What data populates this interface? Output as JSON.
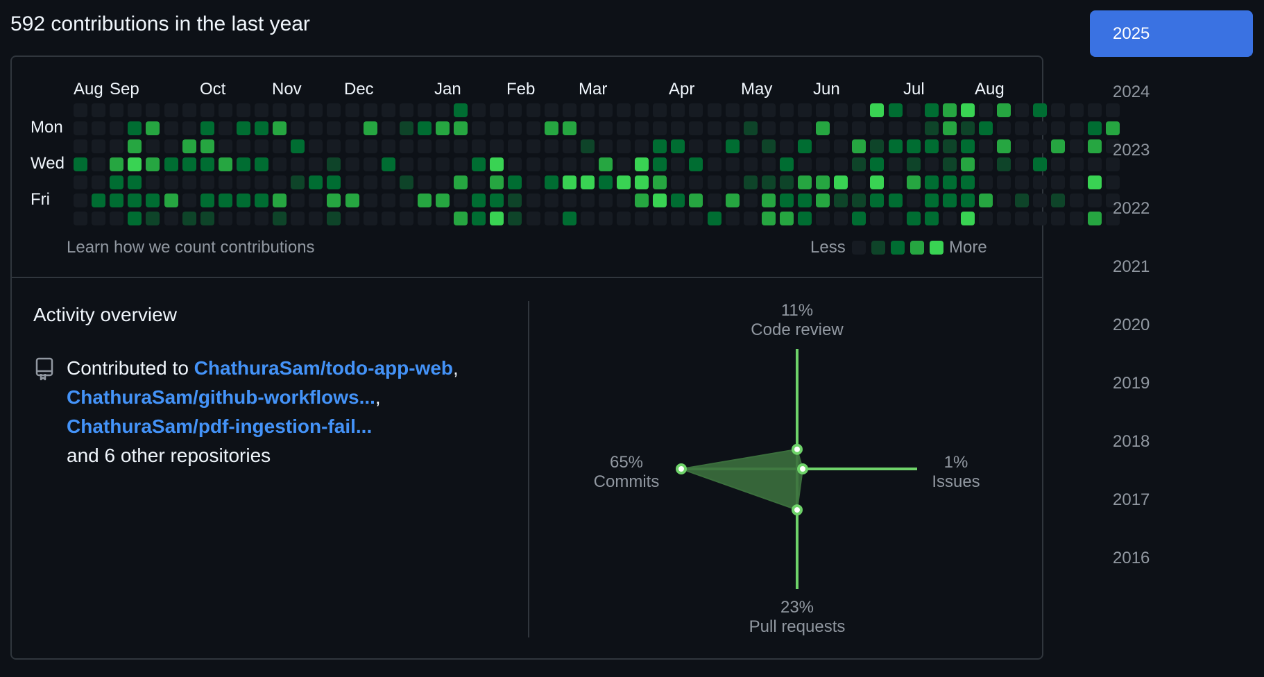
{
  "heading": "592 contributions in the last year",
  "calendar": {
    "months": [
      "Aug",
      "Sep",
      "Oct",
      "Nov",
      "Dec",
      "Jan",
      "Feb",
      "Mar",
      "Apr",
      "May",
      "Jun",
      "Jul",
      "Aug"
    ],
    "day_labels": [
      "Mon",
      "Wed",
      "Fri"
    ],
    "grid": [
      "0000000000000000000002000000000000000000000042023403020000",
      "0002300202230000301233000033000000000100030000013120000023",
      "0003003300002000000000000000100022002010200312221203003030",
      "2034322232200010020000240000030420200002000120101301020000",
      "0022000000001220001003032024424430000111334040322200000040",
      "0222230222230033000330221000000342303032231122022230101000",
      "0002101100010010000003241002000000020033200200220400000030"
    ],
    "levels": [
      "#161b22",
      "#0e4429",
      "#006d32",
      "#26a641",
      "#39d353"
    ],
    "learn_link": "Learn how we count contributions",
    "legend_less": "Less",
    "legend_more": "More"
  },
  "activity": {
    "title": "Activity overview",
    "book_icon": "repo-icon",
    "contributed_prefix": "Contributed to ",
    "repos": [
      "ChathuraSam/todo-app-web",
      "ChathuraSam/github-workflows...",
      "ChathuraSam/pdf-ingestion-fail..."
    ],
    "others": "and 6 other repositories"
  },
  "chart_data": {
    "type": "radar",
    "axes": [
      {
        "label": "Code review",
        "percent": "11%",
        "value": 11
      },
      {
        "label": "Issues",
        "percent": "1%",
        "value": 1
      },
      {
        "label": "Pull requests",
        "percent": "23%",
        "value": 23
      },
      {
        "label": "Commits",
        "percent": "65%",
        "value": 65
      }
    ]
  },
  "years": [
    "2025",
    "2024",
    "2023",
    "2022",
    "2021",
    "2020",
    "2019",
    "2018",
    "2017",
    "2016"
  ],
  "selected_year": "2025",
  "colors": {
    "accent": "#3a72e2",
    "link": "#4493f8",
    "radar_line": "#6fd36a",
    "radar_fill": "#3b6f3d"
  }
}
